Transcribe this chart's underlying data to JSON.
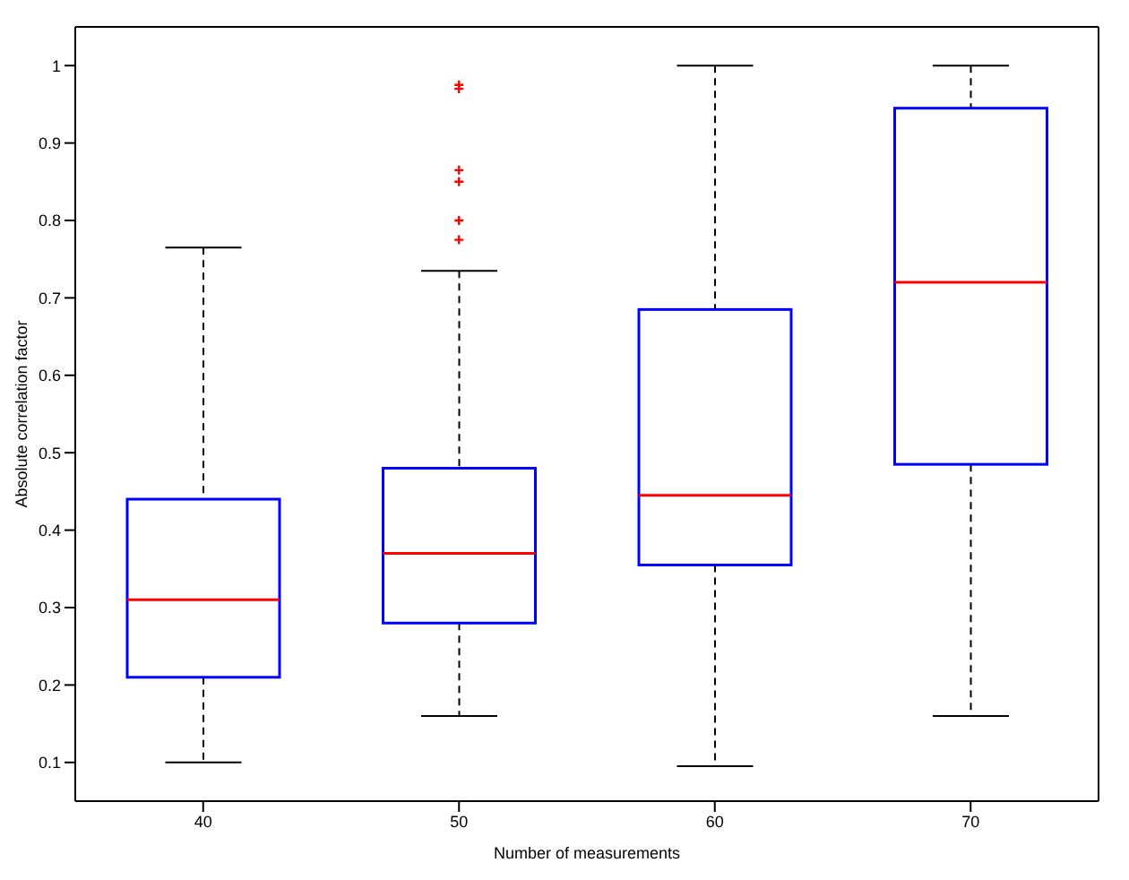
{
  "chart_data": {
    "type": "box",
    "xlabel": "Number of measurements",
    "ylabel": "Absolute correlation factor",
    "categories": [
      "40",
      "50",
      "60",
      "70"
    ],
    "series": [
      {
        "color": "#0000ff",
        "boxes": [
          {
            "low": 0.1,
            "q1": 0.21,
            "median": 0.31,
            "q3": 0.44,
            "high": 0.765
          },
          {
            "low": 0.16,
            "q1": 0.28,
            "median": 0.37,
            "q3": 0.48,
            "high": 0.735,
            "outliers": [
              0.975,
              0.97,
              0.865,
              0.85,
              0.8,
              0.775
            ]
          },
          {
            "low": 0.095,
            "q1": 0.355,
            "median": 0.445,
            "q3": 0.685,
            "high": 1.0
          },
          {
            "low": 0.16,
            "q1": 0.485,
            "median": 0.72,
            "q3": 0.945,
            "high": 1.0
          }
        ]
      }
    ],
    "ylim": [
      0.05,
      1.05
    ],
    "yticks": [
      0.1,
      0.2,
      0.3,
      0.4,
      0.5,
      0.6,
      0.7,
      0.8,
      0.9,
      1
    ],
    "grid": false,
    "legend": false
  }
}
